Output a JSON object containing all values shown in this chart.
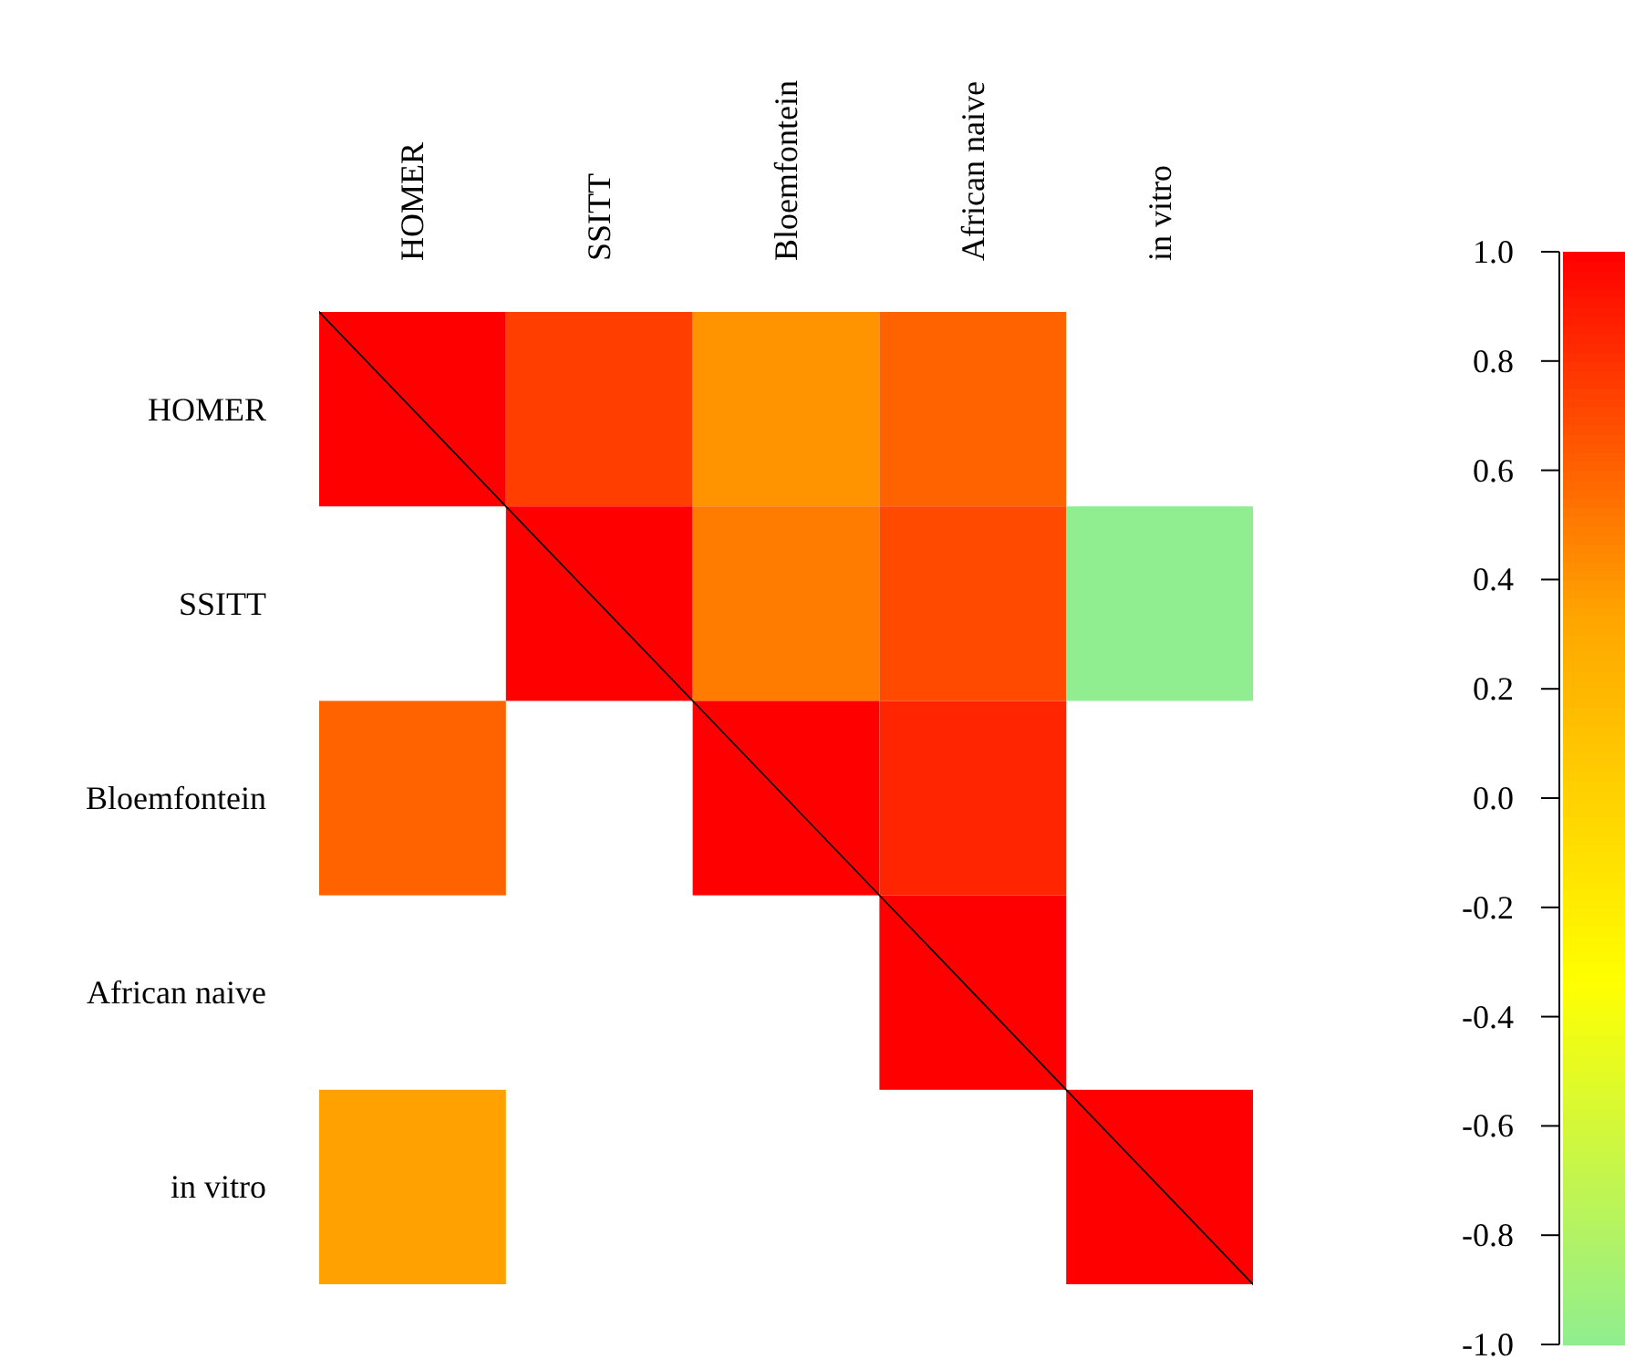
{
  "chart_data": {
    "type": "heatmap",
    "categories": [
      "HOMER",
      "SSITT",
      "Bloemfontein",
      "African naive",
      "in vitro"
    ],
    "y_categories": [
      "HOMER",
      "SSITT",
      "Bloemfontein",
      "African naive",
      "in vitro"
    ],
    "cells": [
      [
        1,
        0.75,
        0.4,
        0.6,
        null
      ],
      [
        null,
        1,
        0.5,
        0.7,
        -1
      ],
      [
        0.6,
        null,
        1,
        0.85,
        null
      ],
      [
        null,
        null,
        null,
        1,
        null
      ],
      [
        0.35,
        null,
        null,
        null,
        1
      ]
    ],
    "clim": [
      -1,
      1
    ],
    "cticks": [
      {
        "value": 1,
        "label": "1.0"
      },
      {
        "value": 0.8,
        "label": "0.8"
      },
      {
        "value": 0.6,
        "label": "0.6"
      },
      {
        "value": 0.4,
        "label": "0.4"
      },
      {
        "value": 0.2,
        "label": "0.2"
      },
      {
        "value": 0,
        "label": "0.0"
      },
      {
        "value": -0.2,
        "label": "-0.2"
      },
      {
        "value": -0.4,
        "label": "-0.4"
      },
      {
        "value": -0.6,
        "label": "-0.6"
      },
      {
        "value": -0.8,
        "label": "-0.8"
      },
      {
        "value": -1,
        "label": "-1.0"
      }
    ]
  }
}
